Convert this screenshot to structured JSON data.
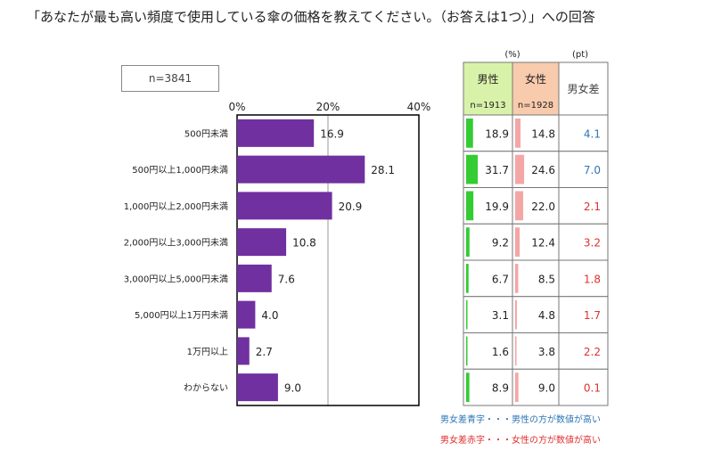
{
  "title": "「あなたが最も高い頻度で使用している傘の価格を教えてください。（お答えは1つ）」への回答",
  "n_label": "n=3841",
  "colors": {
    "bar": "#7030a0",
    "male": "#33cc33",
    "female": "#f4a6a6",
    "male_header": "#d9f2a9",
    "female_header": "#f8cbad",
    "blue": "#2e75b6",
    "red": "#e03030"
  },
  "chart_data": {
    "type": "bar",
    "orientation": "horizontal",
    "categories": [
      "500円未満",
      "500円以上1,000円未満",
      "1,000円以上2,000円未満",
      "2,000円以上3,000円未満",
      "3,000円以上5,000円未満",
      "5,000円以上1万円未満",
      "1万円以上",
      "わからない"
    ],
    "values": [
      16.9,
      28.1,
      20.9,
      10.8,
      7.6,
      4.0,
      2.7,
      9.0
    ],
    "xlim": [
      0,
      40
    ],
    "ticks": [
      "0%",
      "20%",
      "40%"
    ],
    "grid": true
  },
  "table": {
    "unit_percent": "(%)",
    "unit_pt": "(pt)",
    "male_label": "男性",
    "male_n": "n=1913",
    "female_label": "女性",
    "female_n": "n=1928",
    "diff_label": "男女差",
    "rows": [
      {
        "male": "18.9",
        "female": "14.8",
        "diff": "4.1",
        "diff_color": "blue"
      },
      {
        "male": "31.7",
        "female": "24.6",
        "diff": "7.0",
        "diff_color": "blue"
      },
      {
        "male": "19.9",
        "female": "22.0",
        "diff": "2.1",
        "diff_color": "red"
      },
      {
        "male": "9.2",
        "female": "12.4",
        "diff": "3.2",
        "diff_color": "red"
      },
      {
        "male": "6.7",
        "female": "8.5",
        "diff": "1.8",
        "diff_color": "red"
      },
      {
        "male": "3.1",
        "female": "4.8",
        "diff": "1.7",
        "diff_color": "red"
      },
      {
        "male": "1.6",
        "female": "3.8",
        "diff": "2.2",
        "diff_color": "red"
      },
      {
        "male": "8.9",
        "female": "9.0",
        "diff": "0.1",
        "diff_color": "red"
      }
    ]
  },
  "notes": {
    "blue": "男女差青字・・・男性の方が数値が高い",
    "red": "男女差赤字・・・女性の方が数値が高い"
  }
}
